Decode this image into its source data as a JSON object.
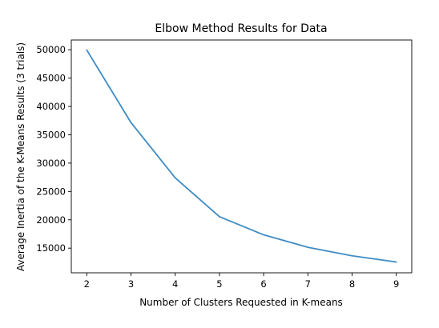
{
  "colors": {
    "series": "#3e8bc4",
    "background": "#ffffff",
    "axis": "#000000"
  },
  "chart_data": {
    "type": "line",
    "title": "Elbow Method Results for Data",
    "xlabel": "Number of Clusters Requested in K-means",
    "ylabel": "Average Inertia of the K-Means Results (3 trials)",
    "x": [
      2,
      3,
      4,
      5,
      6,
      7,
      8,
      9
    ],
    "xticks": [
      "2",
      "3",
      "4",
      "5",
      "6",
      "7",
      "8",
      "9"
    ],
    "yticks": [
      15000,
      20000,
      25000,
      30000,
      35000,
      40000,
      45000,
      50000
    ],
    "ylim": [
      10650,
      51720
    ],
    "xlim": [
      1.65,
      9.35
    ],
    "series": [
      {
        "values": [
          49950,
          37150,
          27400,
          20550,
          17350,
          15150,
          13650,
          12550
        ]
      }
    ],
    "grid": false,
    "legend": "none"
  }
}
